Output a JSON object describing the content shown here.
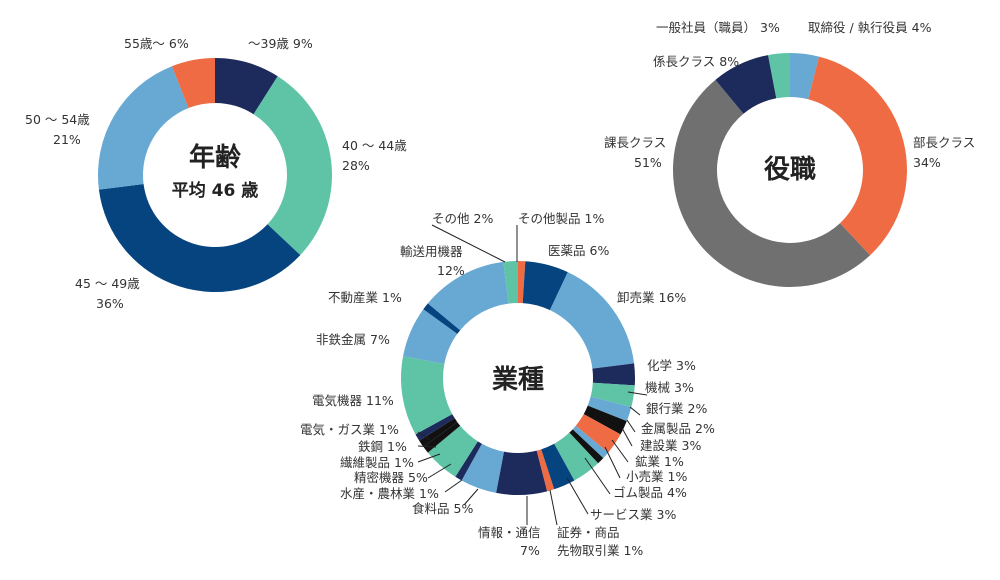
{
  "colors": {
    "navy": "#1d2a5c",
    "teal": "#5fc4a6",
    "darkblue": "#064480",
    "lightblue": "#67a9d3",
    "orange": "#ee6b44",
    "gray": "#707070",
    "black": "#111111"
  },
  "chart_data": [
    {
      "type": "pie",
      "title": "年齢",
      "subtitle": "平均 46 歳",
      "slices": [
        {
          "label": "～39歳",
          "pct": "9%",
          "value": 9,
          "color": "navy"
        },
        {
          "label": "40 ～ 44歳",
          "pct": "28%",
          "value": 28,
          "color": "teal"
        },
        {
          "label": "45 ～ 49歳",
          "pct": "36%",
          "value": 36,
          "color": "darkblue"
        },
        {
          "label": "50 ～ 54歳",
          "pct": "21%",
          "value": 21,
          "color": "lightblue"
        },
        {
          "label": "55歳～",
          "pct": "6%",
          "value": 6,
          "color": "orange"
        }
      ]
    },
    {
      "type": "pie",
      "title": "役職",
      "slices": [
        {
          "label": "取締役 / 執行役員",
          "pct": "4%",
          "value": 4,
          "color": "lightblue"
        },
        {
          "label": "部長クラス",
          "pct": "34%",
          "value": 34,
          "color": "orange"
        },
        {
          "label": "課長クラス",
          "pct": "51%",
          "value": 51,
          "color": "gray"
        },
        {
          "label": "係長クラス",
          "pct": "8%",
          "value": 8,
          "color": "navy"
        },
        {
          "label": "一般社員（職員）",
          "pct": "3%",
          "value": 3,
          "color": "teal"
        }
      ]
    },
    {
      "type": "pie",
      "title": "業種",
      "slices": [
        {
          "label": "その他製品",
          "pct": "1%",
          "value": 1,
          "color": "orange"
        },
        {
          "label": "医薬品",
          "pct": "6%",
          "value": 6,
          "color": "darkblue"
        },
        {
          "label": "卸売業",
          "pct": "16%",
          "value": 16,
          "color": "lightblue"
        },
        {
          "label": "化学",
          "pct": "3%",
          "value": 3,
          "color": "navy"
        },
        {
          "label": "機械",
          "pct": "3%",
          "value": 3,
          "color": "teal"
        },
        {
          "label": "銀行業",
          "pct": "2%",
          "value": 2,
          "color": "lightblue"
        },
        {
          "label": "金属製品",
          "pct": "2%",
          "value": 2,
          "color": "black"
        },
        {
          "label": "建設業",
          "pct": "3%",
          "value": 3,
          "color": "orange"
        },
        {
          "label": "鉱業",
          "pct": "1%",
          "value": 1,
          "color": "lightblue"
        },
        {
          "label": "小売業",
          "pct": "1%",
          "value": 1,
          "color": "black"
        },
        {
          "label": "ゴム製品",
          "pct": "4%",
          "value": 4,
          "color": "teal"
        },
        {
          "label": "サービス業",
          "pct": "3%",
          "value": 3,
          "color": "darkblue"
        },
        {
          "label": "証券・商品 先物取引業",
          "pct": "1%",
          "value": 1,
          "color": "orange"
        },
        {
          "label": "情報・通信",
          "pct": "7%",
          "value": 7,
          "color": "navy"
        },
        {
          "label": "食料品",
          "pct": "5%",
          "value": 5,
          "color": "lightblue"
        },
        {
          "label": "水産・農林業",
          "pct": "1%",
          "value": 1,
          "color": "navy"
        },
        {
          "label": "精密機器",
          "pct": "5%",
          "value": 5,
          "color": "teal"
        },
        {
          "label": "繊維製品",
          "pct": "1%",
          "value": 1,
          "color": "black"
        },
        {
          "label": "鉄鋼",
          "pct": "1%",
          "value": 1,
          "color": "black"
        },
        {
          "label": "電気・ガス業",
          "pct": "1%",
          "value": 1,
          "color": "navy"
        },
        {
          "label": "電気機器",
          "pct": "11%",
          "value": 11,
          "color": "teal"
        },
        {
          "label": "非鉄金属",
          "pct": "7%",
          "value": 7,
          "color": "lightblue"
        },
        {
          "label": "不動産業",
          "pct": "1%",
          "value": 1,
          "color": "darkblue"
        },
        {
          "label": "輸送用機器",
          "pct": "12%",
          "value": 12,
          "color": "lightblue"
        },
        {
          "label": "その他",
          "pct": "2%",
          "value": 2,
          "color": "teal"
        }
      ]
    }
  ]
}
